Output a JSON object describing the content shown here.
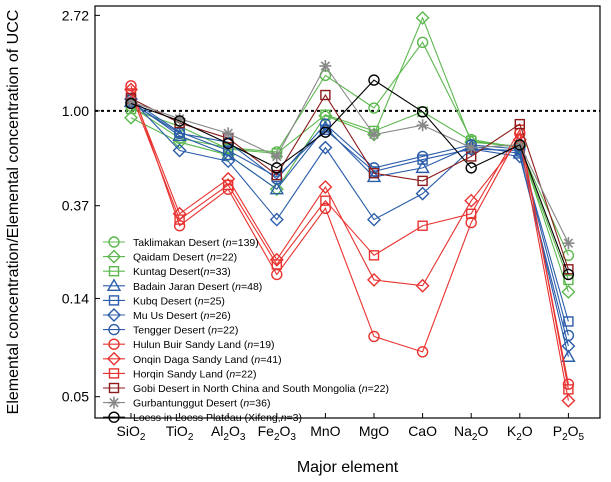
{
  "chart_data": {
    "type": "line",
    "xlabel": "Major element",
    "ylabel": "Elemental concentration/Elemental concentration of UCC",
    "y_scale": "log",
    "ylim": [
      0.04,
      3.0
    ],
    "yticks": [
      "2.72",
      "1.00",
      "0.37",
      "0.14",
      "0.05"
    ],
    "reference_line": 1.0,
    "grid": false,
    "legend_position": "bottom-left inside",
    "categories": [
      {
        "base": "SiO",
        "sub": "2"
      },
      {
        "base": "TiO",
        "sub": "2"
      },
      {
        "base": "Al",
        "sub": "2",
        "mid": "O",
        "sub2": "3"
      },
      {
        "base": "Fe",
        "sub": "2",
        "mid": "O",
        "sub2": "3"
      },
      {
        "base": "MnO",
        "sub": ""
      },
      {
        "base": "MgO",
        "sub": ""
      },
      {
        "base": "CaO",
        "sub": ""
      },
      {
        "base": "Na",
        "sub": "2",
        "mid": "O",
        "sub2": ""
      },
      {
        "base": "K",
        "sub": "2",
        "mid": "O",
        "sub2": ""
      },
      {
        "base": "P",
        "sub": "2",
        "mid": "O",
        "sub2": "5"
      }
    ],
    "series": [
      {
        "name": "Taklimakan Desert (n=139)",
        "legend_pre": "Taklimakan Desert (",
        "legend_n": "n",
        "legend_post": "=139)",
        "color": "#5cb84e",
        "marker": "circle",
        "values": [
          1.05,
          0.75,
          0.68,
          0.65,
          1.45,
          1.03,
          2.05,
          0.74,
          0.68,
          0.22
        ]
      },
      {
        "name": "Qaidam Desert (n=22)",
        "legend_pre": "Qaidam Desert (",
        "legend_n": "n",
        "legend_post": "=22)",
        "color": "#5cb84e",
        "marker": "diamond",
        "values": [
          0.93,
          0.72,
          0.63,
          0.44,
          0.95,
          0.78,
          2.65,
          0.72,
          0.69,
          0.15
        ]
      },
      {
        "name": "Kuntag Desert(n=33)",
        "legend_pre": "Kuntag Desert(",
        "legend_n": "n",
        "legend_post": "=33)",
        "color": "#5cb84e",
        "marker": "square",
        "values": [
          1.02,
          0.85,
          0.67,
          0.64,
          0.96,
          0.81,
          0.99,
          0.73,
          0.68,
          0.17
        ]
      },
      {
        "name": "Badain Jaran Desert (n=48)",
        "legend_pre": "Badain Jaran Desert (",
        "legend_n": "n",
        "legend_post": "=48)",
        "color": "#2a5caa",
        "marker": "triangle",
        "values": [
          1.1,
          0.77,
          0.63,
          0.44,
          0.84,
          0.5,
          0.55,
          0.69,
          0.64,
          0.076
        ]
      },
      {
        "name": "Kubq Desert (n=25)",
        "legend_pre": "Kubq Desert (",
        "legend_n": "n",
        "legend_post": "=25)",
        "color": "#2a5caa",
        "marker": "square",
        "values": [
          1.12,
          0.8,
          0.66,
          0.5,
          0.82,
          0.53,
          0.6,
          0.67,
          0.66,
          0.11
        ]
      },
      {
        "name": "Mu Us Desert (n=26)",
        "legend_pre": "Mu Us Desert (",
        "legend_n": "n",
        "legend_post": "=26)",
        "color": "#2a5caa",
        "marker": "diamond",
        "values": [
          1.13,
          0.66,
          0.59,
          0.32,
          0.68,
          0.32,
          0.42,
          0.67,
          0.62,
          0.085
        ]
      },
      {
        "name": "Tengger Desert (n=22)",
        "legend_pre": "Tengger Desert (",
        "legend_n": "n",
        "legend_post": "=22)",
        "color": "#2a5caa",
        "marker": "circle",
        "values": [
          1.09,
          0.79,
          0.72,
          0.49,
          0.87,
          0.55,
          0.62,
          0.7,
          0.67,
          0.095
        ]
      },
      {
        "name": "Hulun Buir Sandy Land (n=19)",
        "legend_pre": "Hulun Buir Sandy Land (",
        "legend_n": "n",
        "legend_post": "=19)",
        "color": "#e8322f",
        "marker": "circle",
        "values": [
          1.3,
          0.3,
          0.44,
          0.18,
          0.36,
          0.094,
          0.08,
          0.31,
          0.79,
          0.057
        ]
      },
      {
        "name": "Onqin Daga Sandy Land (n=41)",
        "legend_pre": "Onqin Daga Sandy Land (",
        "legend_n": "n",
        "legend_post": "=41)",
        "color": "#e8322f",
        "marker": "diamond",
        "values": [
          1.25,
          0.34,
          0.49,
          0.21,
          0.45,
          0.17,
          0.16,
          0.39,
          0.74,
          0.048
        ]
      },
      {
        "name": "Horqin Sandy Land (n=22)",
        "legend_pre": "Horqin Sandy Land (",
        "legend_n": "n",
        "legend_post": "=22)",
        "color": "#e8322f",
        "marker": "square",
        "values": [
          1.2,
          0.32,
          0.46,
          0.2,
          0.39,
          0.22,
          0.3,
          0.34,
          0.82,
          0.054
        ]
      },
      {
        "name": "Gobi Desert in North China and South Mongolia (n=22)",
        "legend_pre": "Gobi Desert in North China and South Mongolia (",
        "legend_n": "n",
        "legend_post": "=22)",
        "color": "#8b1a1a",
        "marker": "square",
        "values": [
          1.14,
          0.88,
          0.75,
          0.51,
          1.18,
          0.52,
          0.48,
          0.62,
          0.87,
          0.19
        ]
      },
      {
        "name": "Gurbantunggut Desert (n=36)",
        "legend_pre": "Gurbantunggut Desert (",
        "legend_n": "n",
        "legend_post": "=36)",
        "color": "#888888",
        "marker": "asterisk",
        "values": [
          1.1,
          0.92,
          0.79,
          0.62,
          1.6,
          0.78,
          0.86,
          0.68,
          0.7,
          0.25
        ]
      },
      {
        "name": "Loess in Loess Plateau (Xifeng,n=3)",
        "legend_pre": "Loess in Loess Plateau (Xifeng,",
        "legend_n": "n",
        "legend_post": "=3)",
        "color": "#000000",
        "marker": "circle",
        "values": [
          1.08,
          0.9,
          0.71,
          0.55,
          0.8,
          1.38,
          0.99,
          0.55,
          0.7,
          0.18
        ]
      }
    ]
  }
}
